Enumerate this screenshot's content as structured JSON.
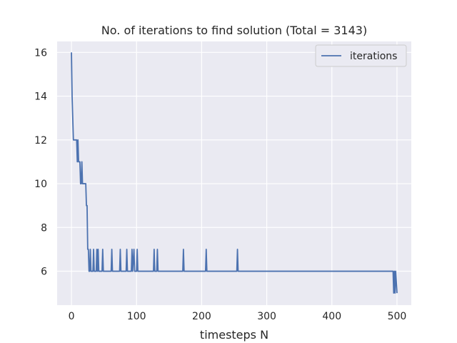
{
  "chart_data": {
    "type": "line",
    "title": "No. of iterations to find solution (Total = 3143)",
    "xlabel": "timesteps N",
    "ylabel": "",
    "xlim": [
      -22,
      522
    ],
    "ylim": [
      4.45,
      16.5
    ],
    "x_ticks": [
      0,
      100,
      200,
      300,
      400,
      500
    ],
    "y_ticks": [
      6,
      8,
      10,
      12,
      14,
      16
    ],
    "grid": true,
    "legend_position": "top-right",
    "colors": {
      "background": "#eaeaf2",
      "grid": "#ffffff",
      "line": "#4c72b0",
      "text": "#262626"
    },
    "series": [
      {
        "name": "iterations",
        "x": [
          0,
          1,
          2,
          3,
          4,
          5,
          6,
          7,
          8,
          9,
          10,
          11,
          12,
          13,
          14,
          15,
          16,
          17,
          18,
          19,
          20,
          21,
          22,
          23,
          24,
          25,
          26,
          27,
          28,
          29,
          30,
          31,
          32,
          33,
          34,
          35,
          36,
          37,
          38,
          39,
          40,
          41,
          42,
          43,
          44,
          45,
          46,
          47,
          48,
          49,
          50,
          61,
          62,
          63,
          74,
          75,
          76,
          84,
          85,
          86,
          92,
          93,
          94,
          96,
          97,
          98,
          100,
          101,
          102,
          126,
          127,
          128,
          131,
          132,
          133,
          171,
          172,
          173,
          206,
          207,
          208,
          254,
          255,
          256,
          493,
          494,
          495,
          496,
          497,
          498,
          500
        ],
        "values": [
          16,
          14,
          13,
          12,
          12,
          12,
          12,
          12,
          12,
          11,
          12,
          11,
          11,
          11,
          10,
          10,
          11,
          10,
          10,
          10,
          10,
          10,
          10,
          9,
          9,
          7,
          7,
          6,
          6,
          7,
          6,
          6,
          6,
          6,
          7,
          6,
          6,
          6,
          6,
          7,
          6,
          7,
          6,
          6,
          6,
          6,
          6,
          6,
          7,
          6,
          6,
          6,
          7,
          6,
          6,
          7,
          6,
          6,
          7,
          6,
          6,
          7,
          6,
          7,
          6,
          6,
          6,
          7,
          6,
          6,
          7,
          6,
          6,
          7,
          6,
          6,
          7,
          6,
          6,
          7,
          6,
          6,
          7,
          6,
          6,
          6,
          5,
          6,
          5,
          6,
          5
        ]
      }
    ]
  }
}
